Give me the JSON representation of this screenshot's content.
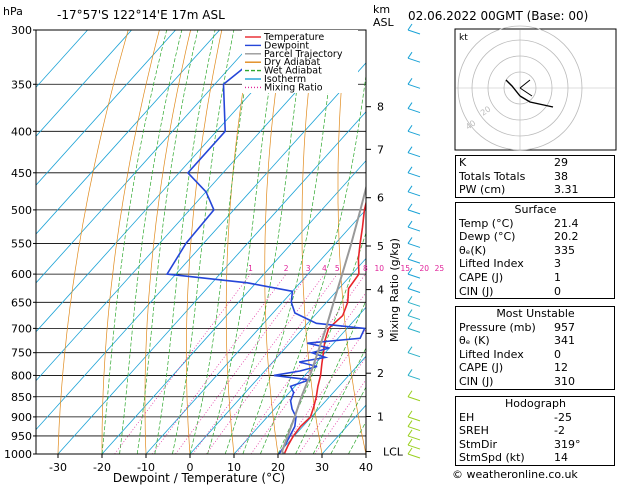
{
  "header": {
    "hpa_label": "hPa",
    "location": "-17°57'S  122°14'E  17m  ASL",
    "km_label": "km",
    "asl_label": "ASL",
    "datetime": "02.06.2022  00GMT  (Base: 00)"
  },
  "legend": [
    {
      "label": "Temperature",
      "color": "#e8242a"
    },
    {
      "label": "Dewpoint",
      "color": "#2546d8"
    },
    {
      "label": "Parcel Trajectory",
      "color": "#999999"
    },
    {
      "label": "Dry Adiabat",
      "color": "#e08a1c"
    },
    {
      "label": "Wet Adiabat",
      "color": "#2ea82e"
    },
    {
      "label": "Isotherm",
      "color": "#1aa2d6"
    },
    {
      "label": "Mixing Ratio",
      "color": "#e0239a"
    }
  ],
  "chart_data": {
    "type": "line",
    "xlabel": "Dewpoint / Temperature (°C)",
    "ylabel": "hPa",
    "xlim": [
      -35,
      40
    ],
    "xticks": [
      -30,
      -20,
      -10,
      0,
      10,
      20,
      30,
      40
    ],
    "pressure_levels": [
      300,
      350,
      400,
      450,
      500,
      550,
      600,
      650,
      700,
      750,
      800,
      850,
      900,
      950,
      1000
    ],
    "km_axis": {
      "label": "km ASL",
      "ticks": [
        {
          "km": "8",
          "p": 373
        },
        {
          "km": "7",
          "p": 421
        },
        {
          "km": "6",
          "p": 483
        },
        {
          "km": "5",
          "p": 554
        },
        {
          "km": "4",
          "p": 627
        },
        {
          "km": "3",
          "p": 710
        },
        {
          "km": "2",
          "p": 795
        },
        {
          "km": "1",
          "p": 899
        },
        {
          "km": "LCL",
          "p": 993
        }
      ]
    },
    "mixing_ratio_axis_label": "Mixing Ratio (g/kg)",
    "mixing_ratio_labels": [
      "1",
      "2",
      "3",
      "4",
      "5",
      "8",
      "10",
      "15",
      "20",
      "25"
    ],
    "series": [
      {
        "name": "Temperature",
        "color": "#e8242a",
        "points": [
          [
            1000,
            21.4
          ],
          [
            975,
            20.5
          ],
          [
            950,
            19.8
          ],
          [
            925,
            19.5
          ],
          [
            900,
            19.8
          ],
          [
            875,
            18.5
          ],
          [
            850,
            17.0
          ],
          [
            825,
            15.2
          ],
          [
            800,
            13.6
          ],
          [
            775,
            11.6
          ],
          [
            750,
            9.6
          ],
          [
            725,
            7.5
          ],
          [
            700,
            5.8
          ],
          [
            675,
            6.4
          ],
          [
            650,
            4.8
          ],
          [
            625,
            2.2
          ],
          [
            600,
            1.6
          ],
          [
            575,
            -1.6
          ],
          [
            550,
            -4.4
          ],
          [
            525,
            -7.2
          ],
          [
            500,
            -10.3
          ],
          [
            475,
            -13.0
          ],
          [
            450,
            -16.0
          ],
          [
            425,
            -20.0
          ],
          [
            400,
            -24.4
          ],
          [
            375,
            -28.8
          ],
          [
            350,
            -33.5
          ],
          [
            325,
            -38.5
          ],
          [
            300,
            -44.2
          ]
        ]
      },
      {
        "name": "Dewpoint",
        "color": "#2546d8",
        "points": [
          [
            1000,
            20.2
          ],
          [
            975,
            19.8
          ],
          [
            950,
            19.0
          ],
          [
            925,
            18.2
          ],
          [
            900,
            16.5
          ],
          [
            880,
            14.0
          ],
          [
            860,
            12.0
          ],
          [
            840,
            11.0
          ],
          [
            825,
            9.0
          ],
          [
            810,
            12.0
          ],
          [
            800,
            3.0
          ],
          [
            790,
            8.0
          ],
          [
            780,
            11.0
          ],
          [
            770,
            6.0
          ],
          [
            760,
            11.0
          ],
          [
            750,
            7.0
          ],
          [
            740,
            10.0
          ],
          [
            730,
            4.0
          ],
          [
            720,
            15.0
          ],
          [
            700,
            14.0
          ],
          [
            690,
            2.0
          ],
          [
            670,
            -5.0
          ],
          [
            650,
            -8.0
          ],
          [
            630,
            -10.0
          ],
          [
            615,
            -22.0
          ],
          [
            600,
            -42.0
          ],
          [
            550,
            -44.0
          ],
          [
            500,
            -44.5
          ],
          [
            475,
            -50.0
          ],
          [
            450,
            -58.0
          ],
          [
            400,
            -58.0
          ],
          [
            350,
            -68.0
          ],
          [
            325,
            -66.0
          ],
          [
            300,
            -66.0
          ]
        ]
      },
      {
        "name": "Parcel Trajectory",
        "color": "#999999",
        "points": [
          [
            1000,
            21.4
          ],
          [
            993,
            20.4
          ],
          [
            950,
            18.5
          ],
          [
            900,
            16.2
          ],
          [
            850,
            13.6
          ],
          [
            800,
            11.2
          ],
          [
            750,
            8.3
          ],
          [
            700,
            5.2
          ],
          [
            650,
            1.6
          ],
          [
            600,
            -2.2
          ],
          [
            550,
            -6.4
          ],
          [
            500,
            -11.2
          ],
          [
            450,
            -16.6
          ],
          [
            400,
            -23.0
          ],
          [
            350,
            -30.8
          ],
          [
            300,
            -40.6
          ]
        ]
      }
    ],
    "wind_barbs_levels": [
      300,
      325,
      350,
      375,
      400,
      425,
      450,
      475,
      500,
      525,
      550,
      575,
      600,
      625,
      650,
      675,
      700,
      750,
      800,
      850,
      900,
      925,
      950,
      975,
      1000
    ]
  },
  "hodograph": {
    "label": "kt",
    "ring_labels": [
      "40",
      "20"
    ]
  },
  "indices": {
    "top": [
      {
        "label": "K",
        "value": "29"
      },
      {
        "label": "Totals Totals",
        "value": "38"
      },
      {
        "label": "PW (cm)",
        "value": "3.31"
      }
    ],
    "surface": {
      "title": "Surface",
      "rows": [
        {
          "label": "Temp (°C)",
          "value": "21.4"
        },
        {
          "label": "Dewp (°C)",
          "value": "20.2"
        },
        {
          "label": "θₑ(K)",
          "value": "335"
        },
        {
          "label": "Lifted Index",
          "value": "3"
        },
        {
          "label": "CAPE (J)",
          "value": "1"
        },
        {
          "label": "CIN (J)",
          "value": "0"
        }
      ]
    },
    "unstable": {
      "title": "Most Unstable",
      "rows": [
        {
          "label": "Pressure (mb)",
          "value": "957"
        },
        {
          "label": "θₑ (K)",
          "value": "341"
        },
        {
          "label": "Lifted Index",
          "value": "0"
        },
        {
          "label": "CAPE (J)",
          "value": "12"
        },
        {
          "label": "CIN (J)",
          "value": "310"
        }
      ]
    },
    "hodo": {
      "title": "Hodograph",
      "rows": [
        {
          "label": "EH",
          "value": "-25"
        },
        {
          "label": "SREH",
          "value": "-2"
        },
        {
          "label": "StmDir",
          "value": "319°"
        },
        {
          "label": "StmSpd (kt)",
          "value": "14"
        }
      ]
    }
  },
  "credit": "© weatheronline.co.uk"
}
